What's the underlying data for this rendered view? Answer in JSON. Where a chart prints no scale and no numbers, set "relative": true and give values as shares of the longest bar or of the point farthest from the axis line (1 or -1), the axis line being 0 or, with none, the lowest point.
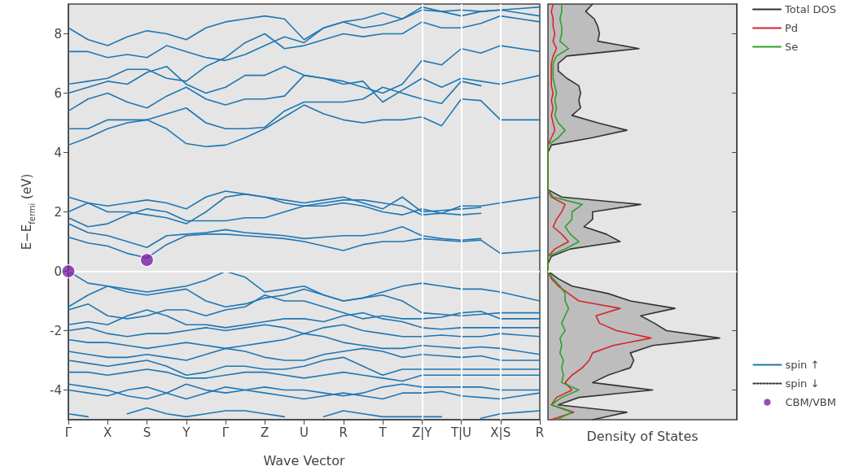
{
  "chart_data": [
    {
      "type": "line",
      "xlabel": "Wave Vector",
      "ylabel": "E−E$_{fermi}$ (eV)",
      "marker": "none",
      "legend": "bottom right",
      "categories": [
        "Γ",
        null,
        "X",
        null,
        "S",
        null,
        "Y",
        null,
        "Γ",
        null,
        "Z",
        null,
        "U",
        null,
        "R",
        null,
        "T",
        null,
        "Z|Y",
        null,
        "T|U",
        null,
        "X|S",
        null,
        "R"
      ],
      "ylim": [
        -5,
        9
      ],
      "yticks": [
        -4,
        -2,
        0,
        2,
        4,
        6,
        8
      ],
      "ref_lines": [
        {
          "axis": "y",
          "value": 0,
          "color": "#ffffff"
        },
        {
          "axis": "x",
          "value": "Z|Y",
          "color": "#ffffff"
        },
        {
          "axis": "x",
          "value": "T|U",
          "color": "#ffffff"
        },
        {
          "axis": "x",
          "value": "X|S",
          "color": "#ffffff"
        }
      ],
      "series": [
        {
          "name": "spin ↑",
          "color": "#1f77b4",
          "values": [
            1.15,
            0.95,
            0.85,
            0.6,
            0.45,
            0.9,
            1.2,
            1.25,
            1.25,
            1.2,
            1.15,
            1.1,
            1.0,
            0.85,
            0.7,
            0.9,
            1.0,
            1.0,
            1.1,
            1.05,
            1.0,
            1.05,
            0.6,
            0.65,
            0.7
          ]
        },
        {
          "color": "#1f77b4",
          "values": [
            1.6,
            1.3,
            1.2,
            1.0,
            0.8,
            1.2,
            1.25,
            1.3,
            1.4,
            1.3,
            1.25,
            1.2,
            1.1,
            1.15,
            1.2,
            1.2,
            1.3,
            1.5,
            1.2,
            1.1,
            1.05,
            1.1,
            null,
            null,
            null
          ]
        },
        {
          "color": "#1f77b4",
          "values": [
            1.8,
            1.5,
            1.6,
            1.9,
            2.1,
            2.0,
            1.7,
            1.7,
            1.7,
            1.8,
            1.8,
            2.0,
            2.2,
            2.2,
            2.3,
            2.2,
            2.0,
            1.9,
            2.1,
            1.95,
            2.2,
            2.2,
            2.3,
            2.4,
            2.5
          ]
        },
        {
          "color": "#1f77b4",
          "values": [
            2.0,
            2.3,
            2.2,
            2.3,
            2.4,
            2.3,
            2.1,
            2.5,
            2.7,
            2.6,
            2.5,
            2.4,
            2.3,
            2.4,
            2.5,
            2.3,
            2.1,
            2.5,
            2.0,
            2.05,
            2.1,
            2.15,
            null,
            null,
            null
          ]
        },
        {
          "color": "#1f77b4",
          "values": [
            2.5,
            2.3,
            2.0,
            2.0,
            1.9,
            1.8,
            1.6,
            2.0,
            2.5,
            2.6,
            2.5,
            2.3,
            2.2,
            2.3,
            2.4,
            2.4,
            2.3,
            2.2,
            1.9,
            1.95,
            1.9,
            1.95,
            null,
            null,
            null
          ]
        },
        {
          "color": "#1f77b4",
          "values": [
            0,
            -0.4,
            -0.5,
            -0.6,
            -0.7,
            -0.6,
            -0.5,
            -0.3,
            0,
            -0.2,
            -0.7,
            -0.6,
            -0.5,
            -0.8,
            -1.0,
            -0.9,
            -0.7,
            -0.5,
            -0.4,
            -0.5,
            -0.6,
            -0.6,
            -0.7,
            -0.85,
            -1.0
          ]
        },
        {
          "color": "#1f77b4",
          "values": [
            -1.2,
            -0.8,
            -0.5,
            -0.7,
            -0.8,
            -0.7,
            -0.6,
            -1.0,
            -1.2,
            -1.1,
            -0.9,
            -0.8,
            -0.6,
            -0.8,
            -1.0,
            -0.9,
            -0.8,
            -1.0,
            -1.4,
            -1.45,
            -1.5,
            -1.45,
            -1.4,
            -1.4,
            -1.4
          ]
        },
        {
          "color": "#1f77b4",
          "values": [
            -1.3,
            -1.1,
            -1.5,
            -1.6,
            -1.5,
            -1.3,
            -1.3,
            -1.5,
            -1.3,
            -1.2,
            -0.8,
            -1.0,
            -1.0,
            -1.2,
            -1.4,
            -1.6,
            -1.5,
            -1.6,
            -1.6,
            -1.55,
            -1.4,
            -1.35,
            -1.6,
            -1.6,
            -1.6
          ]
        },
        {
          "color": "#1f77b4",
          "values": [
            -1.8,
            -1.7,
            -1.8,
            -1.5,
            -1.3,
            -1.5,
            -1.8,
            -1.8,
            -1.9,
            -1.8,
            -1.7,
            -1.6,
            -1.6,
            -1.7,
            -1.5,
            -1.4,
            -1.6,
            -1.7,
            -1.9,
            -1.95,
            -1.9,
            -1.9,
            -1.9,
            -1.9,
            -1.9
          ]
        },
        {
          "color": "#1f77b4",
          "values": [
            -2.0,
            -1.9,
            -2.1,
            -2.2,
            -2.1,
            -2.1,
            -2.0,
            -1.9,
            -2.0,
            -1.9,
            -1.8,
            -1.9,
            -2.1,
            -1.9,
            -1.8,
            -2.0,
            -2.1,
            -2.2,
            -2.2,
            -2.15,
            -2.2,
            -2.2,
            -2.1,
            -2.15,
            -2.2
          ]
        },
        {
          "color": "#1f77b4",
          "values": [
            -2.3,
            -2.4,
            -2.4,
            -2.5,
            -2.6,
            -2.5,
            -2.4,
            -2.5,
            -2.6,
            -2.5,
            -2.4,
            -2.3,
            -2.1,
            -2.2,
            -2.4,
            -2.5,
            -2.6,
            -2.6,
            -2.5,
            -2.55,
            -2.6,
            -2.55,
            -2.6,
            -2.7,
            -2.8
          ]
        },
        {
          "color": "#1f77b4",
          "values": [
            -2.7,
            -2.8,
            -2.9,
            -2.9,
            -2.8,
            -2.9,
            -3.0,
            -2.8,
            -2.6,
            -2.7,
            -2.9,
            -3.0,
            -3.0,
            -2.8,
            -2.7,
            -2.6,
            -2.7,
            -2.9,
            -2.8,
            -2.85,
            -2.9,
            -2.85,
            -3.0,
            -3.0,
            -3.0
          ]
        },
        {
          "color": "#1f77b4",
          "values": [
            -3.0,
            -3.1,
            -3.2,
            -3.1,
            -3.0,
            -3.2,
            -3.5,
            -3.4,
            -3.2,
            -3.2,
            -3.3,
            -3.3,
            -3.2,
            -3.0,
            -2.9,
            -3.2,
            -3.5,
            -3.3,
            -3.3,
            -3.3,
            -3.3,
            -3.3,
            -3.3,
            -3.3,
            -3.3
          ]
        },
        {
          "color": "#1f77b4",
          "values": [
            -3.4,
            -3.4,
            -3.5,
            -3.4,
            -3.3,
            -3.4,
            -3.6,
            -3.6,
            -3.5,
            -3.4,
            -3.4,
            -3.5,
            -3.6,
            -3.5,
            -3.4,
            -3.5,
            -3.6,
            -3.7,
            -3.5,
            -3.5,
            -3.5,
            -3.5,
            -3.5,
            -3.5,
            -3.5
          ]
        },
        {
          "color": "#1f77b4",
          "values": [
            -3.8,
            -3.9,
            -4.0,
            -4.2,
            -4.3,
            -4.1,
            -3.8,
            -4.0,
            -4.1,
            -4.0,
            -3.9,
            -4.0,
            -4.0,
            -4.1,
            -4.2,
            -4.1,
            -3.9,
            -3.8,
            -3.9,
            -3.9,
            -3.9,
            -3.9,
            -4.0,
            -4.0,
            -4.0
          ]
        },
        {
          "color": "#1f77b4",
          "values": [
            -4.0,
            -4.1,
            -4.2,
            -4.0,
            -3.9,
            -4.1,
            -4.3,
            -4.1,
            -3.9,
            -4.0,
            -4.1,
            -4.2,
            -4.3,
            -4.2,
            -4.1,
            -4.2,
            -4.3,
            -4.1,
            -4.1,
            -4.05,
            -4.2,
            -4.25,
            -4.3,
            -4.2,
            -4.1
          ]
        },
        {
          "color": "#1f77b4",
          "values": [
            -4.8,
            -4.9,
            null,
            -4.8,
            -4.6,
            -4.8,
            -4.9,
            -4.8,
            -4.7,
            -4.7,
            -4.8,
            -4.9,
            null,
            -4.9,
            -4.7,
            -4.8,
            -4.9,
            -4.9,
            -4.9,
            -4.9,
            null,
            -4.95,
            -4.8,
            -4.75,
            -4.7
          ]
        },
        {
          "color": "#1f77b4",
          "values": [
            4.25,
            4.5,
            4.8,
            5.0,
            5.1,
            4.8,
            4.3,
            4.2,
            4.25,
            4.5,
            4.8,
            5.2,
            5.6,
            5.3,
            5.1,
            5.0,
            5.1,
            5.1,
            5.2,
            4.9,
            5.8,
            5.75,
            5.1,
            5.1,
            5.1
          ]
        },
        {
          "color": "#1f77b4",
          "values": [
            4.8,
            4.8,
            5.1,
            5.1,
            5.1,
            5.3,
            5.5,
            5.0,
            4.8,
            4.8,
            4.85,
            5.4,
            5.7,
            5.7,
            5.7,
            5.8,
            6.2,
            6.0,
            5.8,
            5.65,
            6.4,
            6.25,
            null,
            null,
            null
          ]
        },
        {
          "color": "#1f77b4",
          "values": [
            5.4,
            5.8,
            6.0,
            5.7,
            5.5,
            5.9,
            6.2,
            5.8,
            5.6,
            5.8,
            5.8,
            5.9,
            6.6,
            6.5,
            6.3,
            6.4,
            5.7,
            6.1,
            6.5,
            6.2,
            6.5,
            6.4,
            6.3,
            6.45,
            6.6
          ]
        },
        {
          "color": "#1f77b4",
          "values": [
            6.0,
            6.2,
            6.4,
            6.3,
            6.7,
            6.9,
            6.3,
            6.0,
            6.2,
            6.6,
            6.6,
            6.9,
            6.6,
            6.5,
            6.4,
            6.2,
            6.0,
            6.3,
            7.1,
            6.95,
            7.5,
            7.35,
            7.6,
            7.5,
            7.4
          ]
        },
        {
          "color": "#1f77b4",
          "values": [
            6.3,
            6.4,
            6.5,
            6.8,
            6.8,
            6.5,
            6.4,
            6.9,
            7.2,
            7.7,
            8.0,
            7.5,
            7.6,
            7.8,
            8.0,
            7.9,
            8.0,
            8.0,
            8.4,
            8.2,
            8.2,
            8.35,
            8.6,
            8.5,
            8.4
          ]
        },
        {
          "color": "#1f77b4",
          "values": [
            7.4,
            7.4,
            7.2,
            7.3,
            7.2,
            7.6,
            7.4,
            7.2,
            7.1,
            7.3,
            7.6,
            7.9,
            7.7,
            8.2,
            8.4,
            8.2,
            8.3,
            8.5,
            8.8,
            8.75,
            8.8,
            8.75,
            8.8,
            8.85,
            8.9
          ]
        },
        {
          "color": "#1f77b4",
          "values": [
            8.2,
            7.8,
            7.6,
            7.9,
            8.1,
            8.0,
            7.8,
            8.2,
            8.4,
            8.5,
            8.6,
            8.5,
            7.8,
            8.2,
            8.4,
            8.5,
            8.7,
            8.5,
            8.9,
            8.75,
            8.6,
            8.75,
            8.8,
            8.7,
            8.6
          ]
        },
        {
          "name": "spin ↓",
          "color": "#333333",
          "line_style": "dotted",
          "values": [
            null,
            null,
            null,
            null,
            null,
            null,
            null,
            null,
            null,
            null,
            null,
            null,
            null,
            null,
            null,
            null,
            null,
            null,
            null,
            null,
            null,
            null,
            null,
            null,
            null
          ]
        },
        {
          "name": "CBM/VBM",
          "type": "scatter",
          "marker": "circle",
          "color": "#7b1fa2",
          "x": [
            "Γ",
            "S"
          ],
          "values": [
            0,
            0.38
          ]
        }
      ]
    },
    {
      "type": "line",
      "orientation": "horizontal",
      "relative": true,
      "xlabel": "Density of States",
      "legend": "top right",
      "tick_labels": false,
      "x": [
        9,
        8.75,
        8.5,
        8.25,
        8,
        7.75,
        7.5,
        7.25,
        7,
        6.75,
        6.5,
        6.25,
        6,
        5.75,
        5.5,
        5.25,
        5,
        4.75,
        4.5,
        4.25,
        4,
        3.75,
        3.5,
        3.25,
        3,
        2.75,
        2.5,
        2.25,
        2,
        1.75,
        1.5,
        1.25,
        1,
        0.75,
        0.5,
        0.25,
        0,
        -0.25,
        -0.5,
        -0.75,
        -1,
        -1.25,
        -1.5,
        -1.75,
        -2,
        -2.25,
        -2.5,
        -2.75,
        -3,
        -3.25,
        -3.5,
        -3.75,
        -4,
        -4.25,
        -4.5,
        -4.75,
        -5
      ],
      "ylim": [
        -5,
        9
      ],
      "yticks": [
        -4,
        -2,
        0,
        2,
        4,
        6,
        8
      ],
      "ref_lines": [
        {
          "axis": "y",
          "value": 0,
          "color": "#ffffff"
        }
      ],
      "series": [
        {
          "name": "Total DOS",
          "type": "area",
          "color": "#333333",
          "values": [
            0.26,
            0.22,
            0.27,
            0.29,
            0.3,
            0.29,
            0.53,
            0.11,
            0.06,
            0.06,
            0.11,
            0.18,
            0.19,
            0.18,
            0.19,
            0.14,
            0.29,
            0.46,
            0.26,
            0.02,
            0,
            0,
            0,
            0,
            0,
            0,
            0.08,
            0.54,
            0.26,
            0.26,
            0.21,
            0.34,
            0.42,
            0.13,
            0.02,
            0,
            0,
            0.06,
            0.14,
            0.35,
            0.48,
            0.74,
            0.54,
            0.62,
            0.69,
            1,
            0.61,
            0.48,
            0.5,
            0.48,
            0.35,
            0.26,
            0.61,
            0.18,
            0.06,
            0.46,
            0.26
          ]
        },
        {
          "name": "Pd",
          "color": "#d62728",
          "values": [
            0.03,
            0.02,
            0.03,
            0.03,
            0.04,
            0.03,
            0.05,
            0.03,
            0.02,
            0.02,
            0.02,
            0.02,
            0.03,
            0.02,
            0.03,
            0.02,
            0.03,
            0.04,
            0.02,
            0,
            0,
            0,
            0,
            0,
            0,
            0,
            0.02,
            0.1,
            0.08,
            0.05,
            0.03,
            0.08,
            0.12,
            0.04,
            0,
            0,
            0,
            0.02,
            0.06,
            0.12,
            0.18,
            0.42,
            0.28,
            0.3,
            0.4,
            0.6,
            0.38,
            0.26,
            0.24,
            0.2,
            0.14,
            0.1,
            0.14,
            0.05,
            0.02,
            0.15,
            0.02
          ]
        },
        {
          "name": "Se",
          "color": "#2ca02c",
          "values": [
            0.08,
            0.08,
            0.07,
            0.08,
            0.08,
            0.07,
            0.12,
            0.05,
            0.03,
            0.03,
            0.03,
            0.04,
            0.05,
            0.04,
            0.05,
            0.04,
            0.06,
            0.1,
            0.06,
            0,
            0,
            0,
            0,
            0,
            0,
            0,
            0.03,
            0.2,
            0.14,
            0.14,
            0.1,
            0.13,
            0.18,
            0.1,
            0,
            0,
            0,
            0.03,
            0.07,
            0.1,
            0.1,
            0.12,
            0.1,
            0.08,
            0.1,
            0.07,
            0.08,
            0.07,
            0.09,
            0.08,
            0.09,
            0.08,
            0.18,
            0.08,
            0.02,
            0.14,
            0.05
          ]
        }
      ]
    }
  ]
}
